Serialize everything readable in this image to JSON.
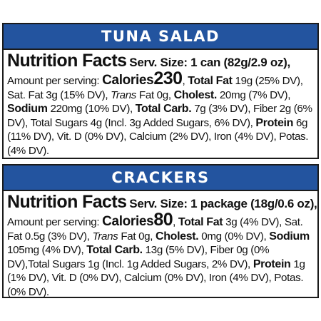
{
  "tuna": {
    "header": "TUNA SALAD",
    "title": "Nutrition Facts",
    "serving": "Serv. Size: 1 can (82g/2.9 oz),",
    "amount_per_serving": "Amount per serving:",
    "calories_label": "Calories",
    "calories_value": "230",
    "total_fat_label": "Total Fat",
    "total_fat_value": "19g (25% DV),",
    "sat_fat": "Sat. Fat 3g (15% DV),",
    "trans_fat_label": "Trans",
    "trans_fat_value": "Fat 0g,",
    "cholest_label": "Cholest.",
    "cholest_value": "20mg (7% DV),",
    "sodium_label": "Sodium",
    "sodium_value": "220mg (10% DV),",
    "carb_label": "Total Carb.",
    "carb_value": "7g (3% DV), Fiber 2g (6% DV), Total Sugars 4g (Incl. 3g Added Sugars, 6% DV),",
    "protein_label": "Protein",
    "protein_value": "6g (11% DV), Vit. D (0% DV), Calcium (2% DV), Iron (4% DV), Potas. (4% DV)."
  },
  "crackers": {
    "header": "CRACKERS",
    "title": "Nutrition Facts",
    "serving": "Serv. Size: 1 package (18g/0.6 oz),",
    "amount_per_serving": "Amount per serving:",
    "calories_label": "Calories",
    "calories_value": "80",
    "total_fat_label": "Total Fat",
    "total_fat_value": "3g (4% DV),",
    "sat_fat": "Sat. Fat 0.5g (3% DV),",
    "trans_fat_label": "Trans",
    "trans_fat_value": "Fat 0g,",
    "cholest_label": "Cholest.",
    "cholest_value": "0mg (0% DV),",
    "sodium_label": "Sodium",
    "sodium_value": "105mg (4% DV),",
    "carb_label": "Total Carb.",
    "carb_value": "13g (5% DV), Fiber 0g (0% DV),Total Sugars 1g (Incl. 1g Added Sugars, 2% DV),",
    "protein_label": "Protein",
    "protein_value": "1g (1% DV), Vit. D (0% DV), Calcium (0% DV), Iron (4% DV), Potas. (0% DV)."
  },
  "colors": {
    "header_background": "#23549f",
    "header_text": "#ffffff",
    "border": "#1b1b1b"
  }
}
